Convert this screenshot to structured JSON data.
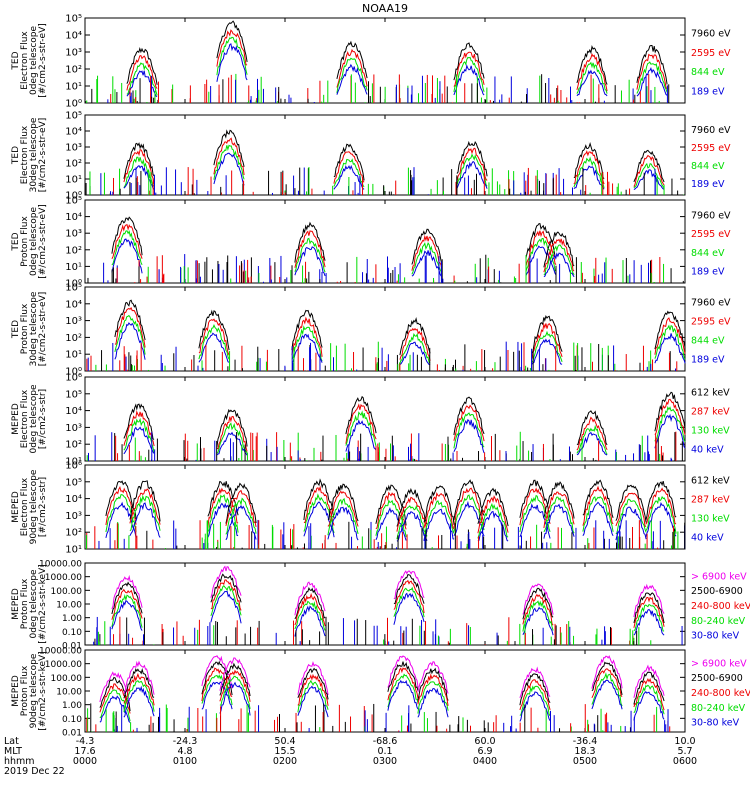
{
  "title": "NOAA19",
  "colors": {
    "black": "#000000",
    "red": "#ee0000",
    "green": "#00dd00",
    "blue": "#0000dd",
    "magenta": "#ee00ee"
  },
  "chart_data": {
    "type": "line",
    "title": "NOAA19",
    "x_ticks": [
      "0000",
      "0100",
      "0200",
      "0300",
      "0400",
      "0500",
      "0600"
    ],
    "x_tick_rows": [
      {
        "label": "Lat",
        "values": [
          "-4.3",
          "-24.3",
          "50.4",
          "-68.6",
          "60.0",
          "-36.4",
          "10.0"
        ]
      },
      {
        "label": "MLT",
        "values": [
          "17.6",
          "4.8",
          "15.5",
          "0.1",
          "6.9",
          "18.3",
          "5.7"
        ]
      },
      {
        "label": "hhmm",
        "values": [
          "0000",
          "0100",
          "0200",
          "0300",
          "0400",
          "0500",
          "0600"
        ]
      }
    ],
    "date_label": "2019 Dec 22",
    "x_range": [
      "0000",
      "0600"
    ],
    "panels": [
      {
        "ylabel": [
          "TED",
          "Electron Flux",
          "0deg telescope",
          "[#/cm2-s-str-eV]"
        ],
        "scale": "log",
        "yticks": [
          "10⁰",
          "10¹",
          "10²",
          "10³",
          "10⁴",
          "10⁵"
        ],
        "ylim": [
          1,
          100000
        ],
        "legend": [
          {
            "text": "7960 eV",
            "color": "#000000"
          },
          {
            "text": "2595 eV",
            "color": "#ee0000"
          },
          {
            "text": "844 eV",
            "color": "#00dd00"
          },
          {
            "text": "189 eV",
            "color": "#0000dd"
          }
        ],
        "bursts": [
          {
            "t": 0.95,
            "peak": 1400
          },
          {
            "t": 2.45,
            "peak": 50000
          },
          {
            "t": 4.45,
            "peak": 3000
          },
          {
            "t": 6.4,
            "peak": 3000
          },
          {
            "t": 8.45,
            "peak": 1500
          },
          {
            "t": 9.45,
            "peak": 1800
          }
        ]
      },
      {
        "ylabel": [
          "TED",
          "Electron Flux",
          "30deg telescope",
          "[#/cm2-s-str-eV]"
        ],
        "scale": "log",
        "yticks": [
          "10⁰",
          "10¹",
          "10²",
          "10³",
          "10⁴",
          "10⁵"
        ],
        "ylim": [
          1,
          100000
        ],
        "legend": [
          {
            "text": "7960 eV",
            "color": "#000000"
          },
          {
            "text": "2595 eV",
            "color": "#ee0000"
          },
          {
            "text": "844 eV",
            "color": "#00dd00"
          },
          {
            "text": "189 eV",
            "color": "#0000dd"
          }
        ],
        "bursts": [
          {
            "t": 0.9,
            "peak": 1500
          },
          {
            "t": 2.4,
            "peak": 8000
          },
          {
            "t": 4.4,
            "peak": 1200
          },
          {
            "t": 6.45,
            "peak": 2000
          },
          {
            "t": 8.4,
            "peak": 1200
          },
          {
            "t": 9.4,
            "peak": 600
          }
        ]
      },
      {
        "ylabel": [
          "TED",
          "Proton Flux",
          "0deg telescope",
          "[#/cm2-s-str-eV]"
        ],
        "scale": "log",
        "yticks": [
          "10⁰",
          "10¹",
          "10²",
          "10³",
          "10⁴",
          "10⁵"
        ],
        "ylim": [
          1,
          100000
        ],
        "legend": [
          {
            "text": "7960 eV",
            "color": "#000000"
          },
          {
            "text": "2595 eV",
            "color": "#ee0000"
          },
          {
            "text": "844 eV",
            "color": "#00dd00"
          },
          {
            "text": "189 eV",
            "color": "#0000dd"
          }
        ],
        "bursts": [
          {
            "t": 0.7,
            "peak": 8000
          },
          {
            "t": 3.75,
            "peak": 3000
          },
          {
            "t": 5.7,
            "peak": 1500
          },
          {
            "t": 7.6,
            "peak": 3000
          },
          {
            "t": 7.9,
            "peak": 1200
          }
        ]
      },
      {
        "ylabel": [
          "TED",
          "Proton Flux",
          "30deg telescope",
          "[#/cm2-s-str-eV]"
        ],
        "scale": "log",
        "yticks": [
          "10⁰",
          "10¹",
          "10²",
          "10³",
          "10⁴",
          "10⁵"
        ],
        "ylim": [
          1,
          100000
        ],
        "legend": [
          {
            "text": "7960 eV",
            "color": "#000000"
          },
          {
            "text": "2595 eV",
            "color": "#ee0000"
          },
          {
            "text": "844 eV",
            "color": "#00dd00"
          },
          {
            "text": "189 eV",
            "color": "#0000dd"
          }
        ],
        "bursts": [
          {
            "t": 0.75,
            "peak": 12000
          },
          {
            "t": 2.15,
            "peak": 3000
          },
          {
            "t": 3.7,
            "peak": 3000
          },
          {
            "t": 5.5,
            "peak": 1000
          },
          {
            "t": 7.7,
            "peak": 1500
          },
          {
            "t": 9.75,
            "peak": 3000
          }
        ]
      },
      {
        "ylabel": [
          "MEPED",
          "Electron Flux",
          "0deg telescope",
          "[#/cm2-s-str]"
        ],
        "scale": "log",
        "yticks": [
          "10¹",
          "10²",
          "10³",
          "10⁴",
          "10⁵",
          "10⁶"
        ],
        "ylim": [
          10,
          1000000
        ],
        "legend": [
          {
            "text": "612 keV",
            "color": "#000000"
          },
          {
            "text": "287 keV",
            "color": "#ee0000"
          },
          {
            "text": "130 keV",
            "color": "#00dd00"
          },
          {
            "text": "40 keV",
            "color": "#0000dd"
          }
        ],
        "bursts": [
          {
            "t": 0.9,
            "peak": 20000
          },
          {
            "t": 2.45,
            "peak": 10000
          },
          {
            "t": 4.6,
            "peak": 50000
          },
          {
            "t": 6.4,
            "peak": 50000
          },
          {
            "t": 8.45,
            "peak": 8000
          },
          {
            "t": 9.75,
            "peak": 100000
          }
        ]
      },
      {
        "ylabel": [
          "MEPED",
          "Electron Flux",
          "90deg telescope",
          "[#/cm2-s-str]"
        ],
        "scale": "log",
        "yticks": [
          "10¹",
          "10²",
          "10³",
          "10⁴",
          "10⁵",
          "10⁶"
        ],
        "ylim": [
          10,
          1000000
        ],
        "legend": [
          {
            "text": "612 keV",
            "color": "#000000"
          },
          {
            "text": "287 keV",
            "color": "#ee0000"
          },
          {
            "text": "130 keV",
            "color": "#00dd00"
          },
          {
            "text": "40 keV",
            "color": "#0000dd"
          }
        ],
        "bursts": [
          {
            "t": 0.6,
            "peak": 100000
          },
          {
            "t": 1.0,
            "peak": 90000
          },
          {
            "t": 2.3,
            "peak": 100000
          },
          {
            "t": 2.6,
            "peak": 60000
          },
          {
            "t": 3.9,
            "peak": 100000
          },
          {
            "t": 4.3,
            "peak": 60000
          },
          {
            "t": 5.1,
            "peak": 50000
          },
          {
            "t": 5.45,
            "peak": 30000
          },
          {
            "t": 5.9,
            "peak": 50000
          },
          {
            "t": 6.4,
            "peak": 100000
          },
          {
            "t": 6.8,
            "peak": 30000
          },
          {
            "t": 7.5,
            "peak": 90000
          },
          {
            "t": 7.9,
            "peak": 80000
          },
          {
            "t": 8.55,
            "peak": 100000
          },
          {
            "t": 9.1,
            "peak": 60000
          },
          {
            "t": 9.6,
            "peak": 90000
          }
        ]
      },
      {
        "ylabel": [
          "MEPED",
          "Proton Flux",
          "0deg telescope",
          "[#/cm2-s-str-keV]"
        ],
        "scale": "log",
        "yticks": [
          "0.01",
          "0.10",
          "1.00",
          "10.00",
          "100.00",
          "1000.00",
          "10000.00"
        ],
        "ylim": [
          0.01,
          10000
        ],
        "legend": [
          {
            "text": "> 6900 keV",
            "color": "#ee00ee"
          },
          {
            "text": "2500-6900",
            "color": "#000000"
          },
          {
            "text": "240-800 keV",
            "color": "#ee0000"
          },
          {
            "text": "80-240 keV",
            "color": "#00dd00"
          },
          {
            "text": "30-80 keV",
            "color": "#0000dd"
          }
        ],
        "bursts": [
          {
            "t": 0.7,
            "peak": 800
          },
          {
            "t": 2.35,
            "peak": 4000
          },
          {
            "t": 3.75,
            "peak": 300
          },
          {
            "t": 5.4,
            "peak": 3000
          },
          {
            "t": 7.55,
            "peak": 300
          },
          {
            "t": 9.4,
            "peak": 200
          }
        ]
      },
      {
        "ylabel": [
          "MEPED",
          "Proton Flux",
          "90deg telescope",
          "[#/cm2-s-str-keV]"
        ],
        "scale": "log",
        "yticks": [
          "0.01",
          "0.10",
          "1.00",
          "10.00",
          "100.00",
          "1000.00",
          "10000.00"
        ],
        "ylim": [
          0.01,
          10000
        ],
        "legend": [
          {
            "text": "> 6900 keV",
            "color": "#ee00ee"
          },
          {
            "text": "2500-6900",
            "color": "#000000"
          },
          {
            "text": "240-800 keV",
            "color": "#ee0000"
          },
          {
            "text": "80-240 keV",
            "color": "#00dd00"
          },
          {
            "text": "30-80 keV",
            "color": "#0000dd"
          }
        ],
        "bursts": [
          {
            "t": 0.5,
            "peak": 200
          },
          {
            "t": 0.9,
            "peak": 1000
          },
          {
            "t": 2.2,
            "peak": 3000
          },
          {
            "t": 2.5,
            "peak": 2000
          },
          {
            "t": 3.8,
            "peak": 1000
          },
          {
            "t": 5.3,
            "peak": 3000
          },
          {
            "t": 5.8,
            "peak": 1000
          },
          {
            "t": 7.5,
            "peak": 400
          },
          {
            "t": 8.7,
            "peak": 3000
          },
          {
            "t": 9.4,
            "peak": 500
          }
        ]
      }
    ]
  }
}
